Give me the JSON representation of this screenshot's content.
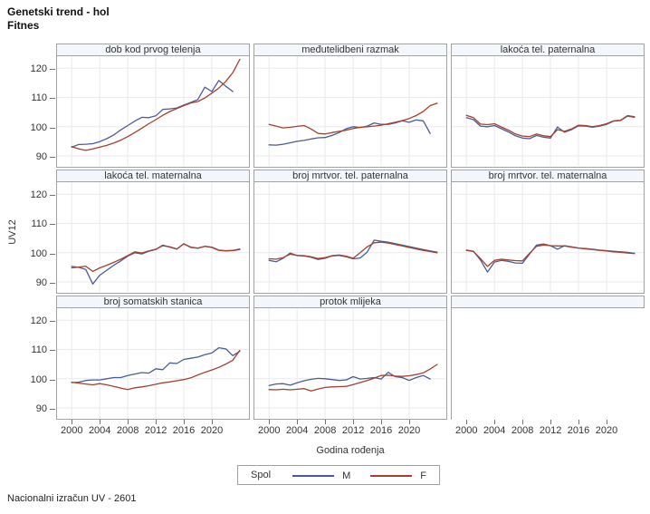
{
  "titles": {
    "line1": "Genetski trend - hol",
    "line2": "Fitnes"
  },
  "footnote": "Nacionalni izračun UV - 2601",
  "axes": {
    "y_label": "UV12",
    "x_label": "Godina rođenja",
    "y_ticks": [
      120,
      110,
      100,
      90
    ],
    "x_ticks": [
      2000,
      2004,
      2008,
      2012,
      2016,
      2020
    ]
  },
  "legend": {
    "title": "Spol",
    "entries": [
      {
        "label": "M",
        "color": "#4a5c96"
      },
      {
        "label": "F",
        "color": "#a5402d"
      }
    ]
  },
  "colors": {
    "grid": "#e8eaee",
    "panel_border": "#a2a2a2",
    "header_fill": "#f3f6fa",
    "tick": "#6f6f6f"
  },
  "chart_data": {
    "type": "line",
    "layout": "3x3-panel-lattice",
    "years_start": 2000,
    "xlim": [
      1997.9,
      2025.3
    ],
    "ylim": [
      86.6,
      124.1
    ],
    "grid": true,
    "legend_position": "bottom",
    "panels": [
      {
        "label": "dob kod prvog telenja",
        "row": 1,
        "col": 1,
        "empty": false,
        "series": [
          {
            "name": "M",
            "values": [
              93,
              93.9,
              94,
              94.2,
              94.9,
              95.9,
              97.2,
              98.9,
              100.4,
              101.9,
              103.2,
              103.1,
              103.7,
              105.9,
              106.1,
              106.4,
              107.4,
              108.3,
              109.3,
              113.5,
              112,
              115.8,
              113.8,
              112,
              null
            ]
          },
          {
            "name": "F",
            "values": [
              93.2,
              92.4,
              91.9,
              92.4,
              93,
              93.6,
              94.4,
              95.4,
              96.6,
              98,
              99.5,
              101,
              102.4,
              103.9,
              105.2,
              106.2,
              107.2,
              108.1,
              108.6,
              109.8,
              111.5,
              113.2,
              115.5,
              118.5,
              123
            ]
          }
        ]
      },
      {
        "label": "međutelidbeni razmak",
        "row": 1,
        "col": 2,
        "empty": false,
        "series": [
          {
            "name": "M",
            "values": [
              93.8,
              93.7,
              94,
              94.5,
              95,
              95.3,
              95.8,
              96.2,
              96.3,
              97,
              98,
              99.3,
              100,
              99.7,
              100.2,
              101.3,
              100.8,
              100.8,
              101.3,
              102,
              101.5,
              102.3,
              102,
              97.7,
              null
            ]
          },
          {
            "name": "F",
            "values": [
              100.8,
              100.2,
              99.6,
              99.8,
              100.1,
              100.4,
              99.2,
              97.7,
              97.5,
              98,
              98.4,
              98.8,
              99.4,
              99.8,
              100,
              100.2,
              100.5,
              101,
              101.5,
              102.1,
              102.8,
              103.8,
              105.2,
              107.2,
              108
            ]
          }
        ]
      },
      {
        "label": "lakoća tel. paternalna",
        "row": 1,
        "col": 3,
        "empty": false,
        "series": [
          {
            "name": "M",
            "values": [
              103.1,
              102.4,
              100.2,
              100,
              100.4,
              99.3,
              98.2,
              96.9,
              96.1,
              95.9,
              97,
              96.4,
              96.1,
              99.9,
              98.1,
              99,
              100.3,
              100.2,
              99.8,
              100.2,
              100.8,
              101.9,
              102.1,
              103.6,
              103.2
            ]
          },
          {
            "name": "F",
            "values": [
              103.9,
              103.1,
              100.9,
              100.7,
              101,
              99.9,
              98.8,
              97.5,
              96.8,
              96.6,
              97.5,
              96.9,
              96.6,
              99,
              98.4,
              99.2,
              100.5,
              100.4,
              100,
              100.4,
              101,
              102,
              102.2,
              103.8,
              103.4
            ]
          }
        ]
      },
      {
        "label": "lakoća tel. maternalna",
        "row": 2,
        "col": 1,
        "empty": false,
        "series": [
          {
            "name": "M",
            "values": [
              95.3,
              95,
              94.3,
              89.3,
              92.3,
              94,
              95.7,
              97.2,
              98.8,
              100,
              99.6,
              100.5,
              101.1,
              102.6,
              101.9,
              101.2,
              103.1,
              101.8,
              101.5,
              102.2,
              101.9,
              100.9,
              100.7,
              100.8,
              101.3
            ]
          },
          {
            "name": "F",
            "values": [
              94.8,
              95.1,
              95.4,
              93.6,
              94.8,
              95.7,
              96.7,
              97.8,
              99,
              100.3,
              99.9,
              100.6,
              101.2,
              102.4,
              102,
              101.3,
              103,
              101.9,
              101.6,
              102.2,
              101.8,
              100.8,
              100.6,
              100.7,
              101.1
            ]
          }
        ]
      },
      {
        "label": "broj mrtvor. tel. paternalna",
        "row": 2,
        "col": 2,
        "empty": false,
        "series": [
          {
            "name": "M",
            "values": [
              97.4,
              96.9,
              98.1,
              99.9,
              99,
              98.9,
              98.4,
              97.7,
              98.1,
              98.9,
              99.1,
              98.6,
              97.9,
              98.2,
              100.2,
              104.3,
              103.9,
              103.6,
              103.1,
              102.6,
              102.1,
              101.6,
              101.1,
              100.6,
              100.2
            ]
          },
          {
            "name": "F",
            "values": [
              97.9,
              97.8,
              98.3,
              99.5,
              99.1,
              99,
              98.6,
              98,
              98.3,
              99,
              99.2,
              98.8,
              98.1,
              100,
              102,
              103.4,
              103.6,
              103.3,
              102.8,
              102.3,
              101.8,
              101.3,
              100.8,
              100.4,
              100
            ]
          }
        ]
      },
      {
        "label": "broj mrtvor. tel. maternalna",
        "row": 2,
        "col": 3,
        "empty": false,
        "series": [
          {
            "name": "M",
            "values": [
              100.9,
              100.5,
              97.5,
              93.4,
              96.8,
              97.4,
              97,
              96.5,
              96.4,
              99.5,
              102.6,
              103,
              102.4,
              101.2,
              102.4,
              102,
              101.6,
              101.4,
              101.2,
              100.9,
              100.7,
              100.5,
              100.3,
              100.1,
              99.8
            ]
          },
          {
            "name": "F",
            "values": [
              100.8,
              100.4,
              98,
              95.3,
              97.4,
              97.8,
              97.5,
              97.3,
              97.2,
              99.8,
              102.2,
              102.6,
              102.4,
              102.3,
              102.3,
              101.9,
              101.6,
              101.3,
              101.1,
              100.8,
              100.6,
              100.3,
              100.1,
              99.9,
              99.7
            ]
          }
        ]
      },
      {
        "label": "broj somatskih stanica",
        "row": 3,
        "col": 1,
        "empty": false,
        "series": [
          {
            "name": "M",
            "values": [
              98.7,
              98.8,
              99.4,
              99.6,
              99.6,
              100,
              100.4,
              100.4,
              101.1,
              101.6,
              102.1,
              101.9,
              103.4,
              103.1,
              105.4,
              105.2,
              106.6,
              107,
              107.4,
              108.2,
              108.8,
              110.6,
              110.2,
              107.9,
              109.4
            ]
          },
          {
            "name": "F",
            "values": [
              98.8,
              98.5,
              98.2,
              97.9,
              98.3,
              97.9,
              97.4,
              96.8,
              96.3,
              96.9,
              97.2,
              97.6,
              98.1,
              98.6,
              98.9,
              99.3,
              99.7,
              100.3,
              101.3,
              102.2,
              103,
              103.9,
              105,
              106.3,
              109.7
            ]
          }
        ]
      },
      {
        "label": "protok mlijeka",
        "row": 3,
        "col": 2,
        "empty": false,
        "series": [
          {
            "name": "M",
            "values": [
              97.7,
              98.2,
              98.3,
              97.8,
              98.6,
              99.3,
              99.8,
              100.1,
              100,
              99.7,
              99.4,
              99.6,
              100.7,
              99.9,
              100.1,
              100.4,
              99.9,
              102.2,
              100.7,
              100.4,
              99.4,
              100.4,
              101.1,
              99.9,
              null
            ]
          },
          {
            "name": "F",
            "values": [
              96.3,
              96.2,
              96.4,
              96.2,
              96.4,
              96.6,
              95.8,
              96.5,
              97,
              97.2,
              97.3,
              97.4,
              98,
              98.7,
              99.4,
              100.2,
              101.1,
              101.2,
              100.9,
              100.8,
              101,
              101.4,
              102,
              103.3,
              104.9
            ]
          }
        ]
      },
      {
        "label": "",
        "row": 3,
        "col": 3,
        "empty": true,
        "series": []
      }
    ]
  }
}
